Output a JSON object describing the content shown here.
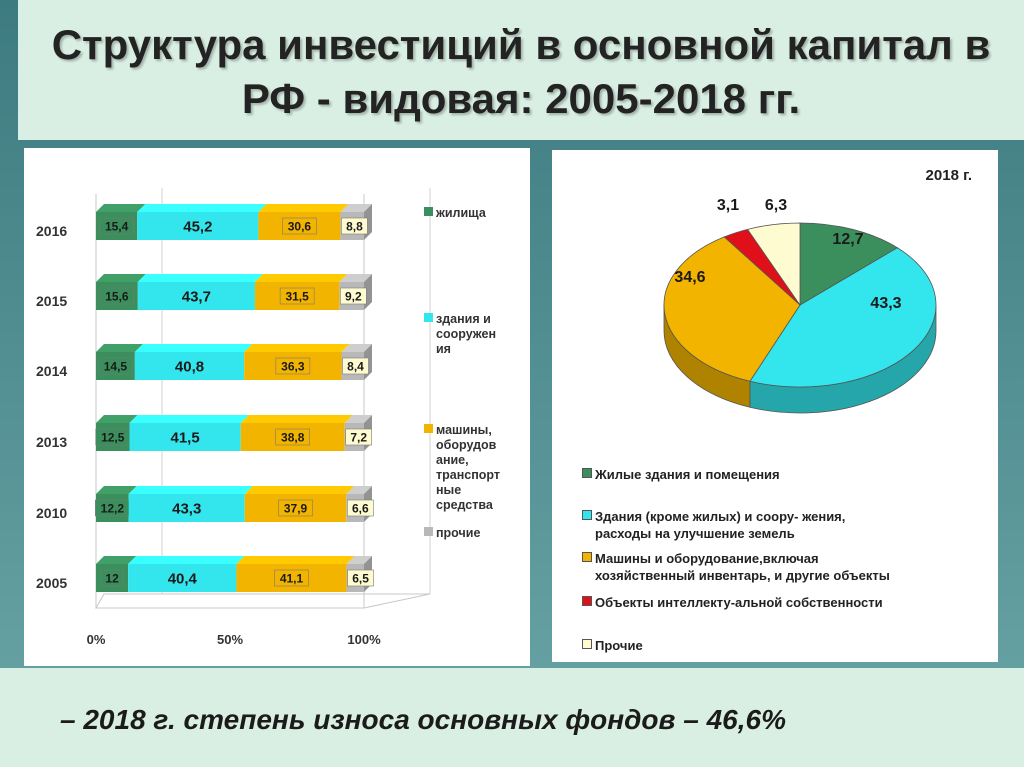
{
  "title": "Структура инвестиций в основной капитал в РФ - видовая: 2005-2018 гг.",
  "title_line1": "Структура инвестиций в основной капитал в",
  "title_line2": "РФ - видовая: 2005-2018 гг.",
  "footnote": "– 2018 г. степень износа основных фондов – 46,6%",
  "colors": {
    "housing": "#3a8f5c",
    "buildings": "#33e6ee",
    "machinery": "#f3b400",
    "ip": "#e0101a",
    "other": "#fffbd0",
    "other_bar": "#b8b8b8"
  },
  "chart_data": [
    {
      "type": "bar",
      "orientation": "horizontal",
      "stacked": "percent",
      "categories": [
        "2016",
        "2015",
        "2014",
        "2013",
        "2010",
        "2005"
      ],
      "series": [
        {
          "name": "жилища",
          "values": [
            15.4,
            15.6,
            14.5,
            12.5,
            12.2,
            12
          ]
        },
        {
          "name": "здания и сооружения",
          "values": [
            45.2,
            43.7,
            40.8,
            41.5,
            43.3,
            40.4
          ]
        },
        {
          "name": "машины, оборудование, транспортные средства",
          "values": [
            30.6,
            31.5,
            36.3,
            38.8,
            37.9,
            41.1
          ]
        },
        {
          "name": "прочие",
          "values": [
            8.8,
            9.2,
            8.4,
            7.2,
            6.6,
            6.5
          ]
        }
      ],
      "labels": [
        [
          "15,4",
          "45,2",
          "30,6",
          "8,8"
        ],
        [
          "15,6",
          "43,7",
          "31,5",
          "9,2"
        ],
        [
          "14,5",
          "40,8",
          "36,3",
          "8,4"
        ],
        [
          "12,5",
          "41,5",
          "38,8",
          "7,2"
        ],
        [
          "12,2",
          "43,3",
          "37,9",
          "6,6"
        ],
        [
          "12",
          "40,4",
          "41,1",
          "6,5"
        ]
      ],
      "xticks": [
        "0%",
        "50%",
        "100%"
      ],
      "xlim": [
        0,
        100
      ],
      "legend": {
        "position": "right",
        "entries": [
          {
            "lines": [
              "жилища"
            ]
          },
          {
            "lines": [
              "здания и",
              "сооружен",
              "ия"
            ]
          },
          {
            "lines": [
              "машины,",
              "оборудов",
              "ание,",
              "транспорт",
              "ные",
              "средства"
            ]
          },
          {
            "lines": [
              "прочие"
            ]
          }
        ]
      }
    },
    {
      "type": "pie",
      "title": "2018 г.",
      "slices": [
        {
          "name": "Жилые здания и помещения",
          "value": 12.7,
          "label": "12,7"
        },
        {
          "name": "Здания (кроме жилых) и соору- жения, расходы на улучшение земель",
          "value": 43.3,
          "label": "43,3"
        },
        {
          "name": "Машины и оборудование,включая хозяйственный инвентарь, и другие объекты",
          "value": 34.6,
          "label": "34,6"
        },
        {
          "name": "Объекты интеллекту-альной собственности",
          "value": 3.1,
          "label": "3,1"
        },
        {
          "name": "Прочие",
          "value": 6.3,
          "label": "6,3"
        }
      ],
      "legend": {
        "position": "bottom",
        "entries": [
          {
            "lines": [
              "Жилые здания и помещения"
            ]
          },
          {
            "lines": [
              "Здания (кроме жилых) и соору- жения,",
              "расходы на улучшение земель"
            ]
          },
          {
            "lines": [
              "Машины и оборудование,включая",
              "хозяйственный инвентарь, и другие объекты"
            ]
          },
          {
            "lines": [
              "Объекты интеллекту-альной собственности"
            ]
          },
          {
            "lines": [
              "Прочие"
            ]
          }
        ]
      }
    }
  ]
}
